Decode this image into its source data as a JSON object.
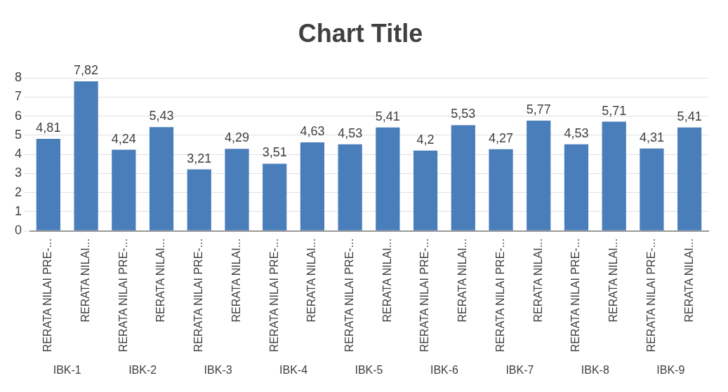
{
  "chart_data": {
    "type": "bar",
    "title": "Chart Title",
    "categories": [
      "RERATA NILAI PRE-...",
      "RERATA NILAI...",
      "RERATA NILAI PRE-...",
      "RERATA NILAI...",
      "RERATA NILAI PRE-...",
      "RERATA NILAI...",
      "RERATA NILAI PRE-...",
      "RERATA NILAI...",
      "RERATA NILAI PRE-...",
      "RERATA NILAI...",
      "RERATA NILAI PRE-...",
      "RERATA NILAI...",
      "RERATA NILAI PRE-...",
      "RERATA NILAI...",
      "RERATA NILAI PRE-...",
      "RERATA NILAI...",
      "RERATA NILAI PRE-...",
      "RERATA NILAI..."
    ],
    "values": [
      4.81,
      7.82,
      4.24,
      5.43,
      3.21,
      4.29,
      3.51,
      4.63,
      4.53,
      5.41,
      4.2,
      5.53,
      4.27,
      5.77,
      4.53,
      5.71,
      4.31,
      5.41
    ],
    "value_labels": [
      "4,81",
      "7,82",
      "4,24",
      "5,43",
      "3,21",
      "4,29",
      "3,51",
      "4,63",
      "4,53",
      "5,41",
      "4,2",
      "5,53",
      "4,27",
      "5,77",
      "4,53",
      "5,71",
      "4,31",
      "5,41"
    ],
    "color": "#4a7ebb",
    "annotations": [
      "IBK-1",
      "IBK-2",
      "IBK-3",
      "IBK-4",
      "IBK-5",
      "IBK-6",
      "IBK-7",
      "IBK-8",
      "IBK-9"
    ],
    "ylim": [
      0,
      8
    ],
    "yticks": [
      0,
      1,
      2,
      3,
      4,
      5,
      6,
      7,
      8
    ],
    "grid": "y"
  }
}
